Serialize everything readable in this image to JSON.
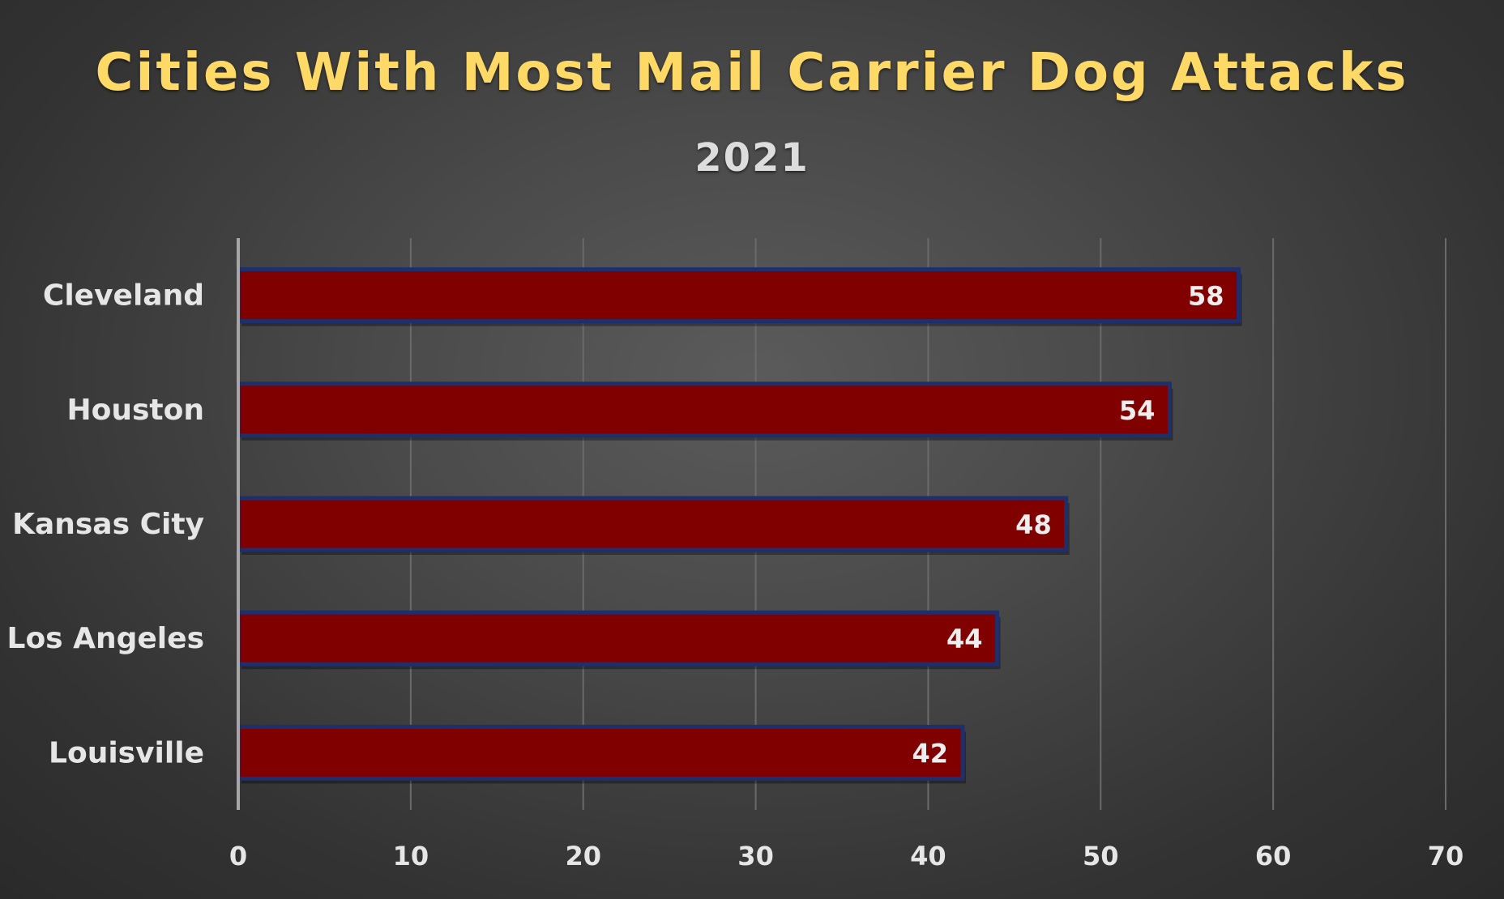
{
  "chart_data": {
    "type": "bar",
    "orientation": "horizontal",
    "title": "Cities With Most Mail Carrier Dog Attacks",
    "subtitle": "2021",
    "categories": [
      "Cleveland",
      "Houston",
      "Kansas City",
      "Los Angeles",
      "Louisville"
    ],
    "values": [
      58,
      54,
      48,
      44,
      42
    ],
    "xlim": [
      0,
      70
    ],
    "xticks": [
      "0",
      "10",
      "20",
      "30",
      "40",
      "50",
      "60",
      "70"
    ],
    "grid": true,
    "data_labels": true,
    "colors": {
      "bar_fill": "#800000",
      "bar_border": "#1f2f6b",
      "title": "#ffd966",
      "subtitle": "#dddddd",
      "text": "#e6e6e6",
      "grid": "#6a6a6a",
      "axis": "#a6a6a6"
    }
  }
}
